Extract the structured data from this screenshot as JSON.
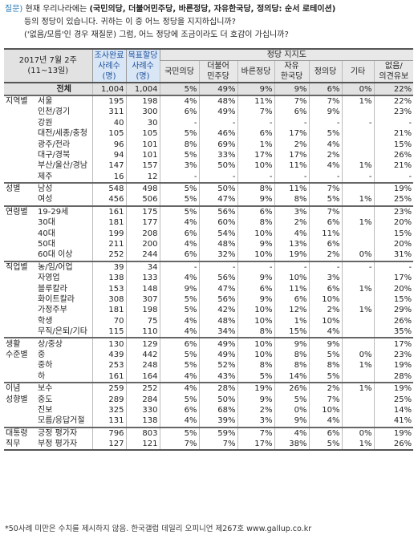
{
  "question": {
    "label": "질문)",
    "line1_a": "현재 우리나라에는 ",
    "line1_b": "(국민의당, 더불어민주당, 바른정당, 자유한국당, 정의당: 순서 로테이션)",
    "line2": "등의 정당이 있습니다. 귀하는 이 중 어느 정당을 지지하십니까?",
    "line3": "('없음/모름'인 경우 재질문) 그럼, 어느 정당에 조금이라도 더 호감이 가십니까?"
  },
  "header": {
    "date": "2017년 7월 2주",
    "date_range": "(11~13일)",
    "sample1": "조사완료",
    "sample1b": "사례수",
    "sample1c": "(명)",
    "sample2": "목표할당",
    "sample2b": "사례수",
    "sample2c": "(명)",
    "party_group": "정당 지지도",
    "parties": [
      {
        "l1": "국민의당",
        "l2": ""
      },
      {
        "l1": "더불어",
        "l2": "민주당"
      },
      {
        "l1": "바른정당",
        "l2": ""
      },
      {
        "l1": "자유",
        "l2": "한국당"
      },
      {
        "l1": "정의당",
        "l2": ""
      },
      {
        "l1": "기타",
        "l2": ""
      },
      {
        "l1": "없음/",
        "l2": "의견유보"
      }
    ]
  },
  "rows": [
    {
      "g": "",
      "s": "전체",
      "n1": "1,004",
      "n2": "1,004",
      "v": [
        "5%",
        "49%",
        "9%",
        "9%",
        "6%",
        "0%",
        "22%"
      ],
      "total": true
    },
    {
      "g": "지역별",
      "s": "서울",
      "n1": "195",
      "n2": "198",
      "v": [
        "4%",
        "48%",
        "11%",
        "7%",
        "7%",
        "1%",
        "22%"
      ],
      "gs": true
    },
    {
      "g": "",
      "s": "인천/경기",
      "n1": "311",
      "n2": "300",
      "v": [
        "6%",
        "49%",
        "7%",
        "6%",
        "9%",
        "",
        "23%"
      ]
    },
    {
      "g": "",
      "s": "강원",
      "n1": "40",
      "n2": "30",
      "v": [
        "-",
        "-",
        "-",
        "-",
        "-",
        "-",
        "-"
      ]
    },
    {
      "g": "",
      "s": "대전/세종/충청",
      "n1": "105",
      "n2": "105",
      "v": [
        "5%",
        "46%",
        "6%",
        "17%",
        "5%",
        "",
        "21%"
      ]
    },
    {
      "g": "",
      "s": "광주/전라",
      "n1": "96",
      "n2": "101",
      "v": [
        "8%",
        "69%",
        "1%",
        "2%",
        "4%",
        "",
        "15%"
      ]
    },
    {
      "g": "",
      "s": "대구/경북",
      "n1": "94",
      "n2": "101",
      "v": [
        "5%",
        "33%",
        "17%",
        "17%",
        "2%",
        "",
        "26%"
      ]
    },
    {
      "g": "",
      "s": "부산/울산/경남",
      "n1": "147",
      "n2": "157",
      "v": [
        "3%",
        "50%",
        "10%",
        "11%",
        "4%",
        "1%",
        "21%"
      ]
    },
    {
      "g": "",
      "s": "제주",
      "n1": "16",
      "n2": "12",
      "v": [
        "-",
        "-",
        "-",
        "-",
        "-",
        "-",
        "-"
      ]
    },
    {
      "g": "성별",
      "s": "남성",
      "n1": "548",
      "n2": "498",
      "v": [
        "5%",
        "50%",
        "8%",
        "11%",
        "7%",
        "",
        "19%"
      ],
      "gs": true
    },
    {
      "g": "",
      "s": "여성",
      "n1": "456",
      "n2": "506",
      "v": [
        "5%",
        "47%",
        "9%",
        "8%",
        "5%",
        "1%",
        "25%"
      ]
    },
    {
      "g": "연령별",
      "s": "19-29세",
      "n1": "161",
      "n2": "175",
      "v": [
        "5%",
        "56%",
        "6%",
        "3%",
        "7%",
        "",
        "23%"
      ],
      "gs": true
    },
    {
      "g": "",
      "s": "30대",
      "n1": "181",
      "n2": "177",
      "v": [
        "4%",
        "60%",
        "8%",
        "2%",
        "6%",
        "1%",
        "20%"
      ]
    },
    {
      "g": "",
      "s": "40대",
      "n1": "199",
      "n2": "208",
      "v": [
        "6%",
        "54%",
        "10%",
        "4%",
        "11%",
        "",
        "15%"
      ]
    },
    {
      "g": "",
      "s": "50대",
      "n1": "211",
      "n2": "200",
      "v": [
        "4%",
        "48%",
        "9%",
        "13%",
        "6%",
        "",
        "20%"
      ]
    },
    {
      "g": "",
      "s": "60대 이상",
      "n1": "252",
      "n2": "244",
      "v": [
        "6%",
        "32%",
        "10%",
        "19%",
        "2%",
        "0%",
        "31%"
      ]
    },
    {
      "g": "직업별",
      "s": "농/임/어업",
      "n1": "39",
      "n2": "34",
      "v": [
        "-",
        "-",
        "-",
        "-",
        "-",
        "-",
        "-"
      ],
      "gs": true
    },
    {
      "g": "",
      "s": "자영업",
      "n1": "138",
      "n2": "133",
      "v": [
        "4%",
        "56%",
        "9%",
        "10%",
        "3%",
        "",
        "17%"
      ]
    },
    {
      "g": "",
      "s": "블루칼라",
      "n1": "153",
      "n2": "148",
      "v": [
        "9%",
        "47%",
        "6%",
        "11%",
        "6%",
        "1%",
        "20%"
      ]
    },
    {
      "g": "",
      "s": "화이트칼라",
      "n1": "308",
      "n2": "307",
      "v": [
        "5%",
        "56%",
        "9%",
        "6%",
        "10%",
        "",
        "15%"
      ]
    },
    {
      "g": "",
      "s": "가정주부",
      "n1": "181",
      "n2": "198",
      "v": [
        "5%",
        "42%",
        "10%",
        "12%",
        "2%",
        "1%",
        "29%"
      ]
    },
    {
      "g": "",
      "s": "학생",
      "n1": "70",
      "n2": "75",
      "v": [
        "4%",
        "48%",
        "10%",
        "1%",
        "10%",
        "",
        "26%"
      ]
    },
    {
      "g": "",
      "s": "무직/은퇴/기타",
      "n1": "115",
      "n2": "110",
      "v": [
        "4%",
        "34%",
        "8%",
        "15%",
        "4%",
        "",
        "35%"
      ]
    },
    {
      "g": "생활",
      "s": "상/중상",
      "n1": "130",
      "n2": "129",
      "v": [
        "6%",
        "49%",
        "10%",
        "9%",
        "9%",
        "",
        "17%"
      ],
      "gs": true
    },
    {
      "g": "수준별",
      "s": "중",
      "n1": "439",
      "n2": "442",
      "v": [
        "5%",
        "49%",
        "10%",
        "8%",
        "5%",
        "0%",
        "23%"
      ]
    },
    {
      "g": "",
      "s": "중하",
      "n1": "253",
      "n2": "248",
      "v": [
        "5%",
        "52%",
        "8%",
        "8%",
        "8%",
        "1%",
        "19%"
      ]
    },
    {
      "g": "",
      "s": "하",
      "n1": "161",
      "n2": "164",
      "v": [
        "4%",
        "43%",
        "5%",
        "14%",
        "5%",
        "",
        "28%"
      ]
    },
    {
      "g": "이념",
      "s": "보수",
      "n1": "259",
      "n2": "252",
      "v": [
        "4%",
        "28%",
        "19%",
        "26%",
        "2%",
        "1%",
        "19%"
      ],
      "gs": true
    },
    {
      "g": "성향별",
      "s": "중도",
      "n1": "289",
      "n2": "284",
      "v": [
        "5%",
        "50%",
        "9%",
        "5%",
        "7%",
        "",
        "25%"
      ]
    },
    {
      "g": "",
      "s": "진보",
      "n1": "325",
      "n2": "330",
      "v": [
        "6%",
        "68%",
        "2%",
        "0%",
        "10%",
        "",
        "14%"
      ]
    },
    {
      "g": "",
      "s": "모름/응답거절",
      "n1": "131",
      "n2": "138",
      "v": [
        "4%",
        "39%",
        "3%",
        "9%",
        "4%",
        "",
        "41%"
      ]
    },
    {
      "g": "대통령",
      "s": "긍정 평가자",
      "n1": "796",
      "n2": "803",
      "v": [
        "5%",
        "59%",
        "7%",
        "4%",
        "6%",
        "0%",
        "19%"
      ],
      "gs": true
    },
    {
      "g": "직무",
      "s": "부정 평가자",
      "n1": "127",
      "n2": "121",
      "v": [
        "7%",
        "7%",
        "17%",
        "38%",
        "5%",
        "1%",
        "26%"
      ],
      "last": true
    }
  ],
  "footnote": "*50사례 미만은 수치를 제시하지 않음. 한국갤럽 데일리 오피니언 제267호 www.gallup.co.kr"
}
